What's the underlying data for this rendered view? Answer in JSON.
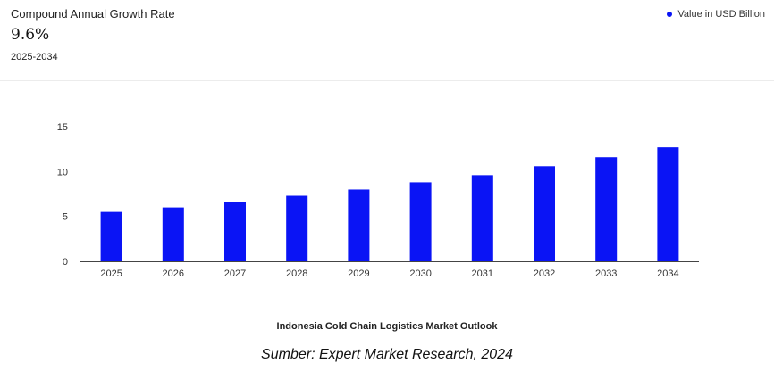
{
  "header": {
    "cagr_label": "Compound Annual Growth Rate",
    "cagr_value": "9.6%",
    "cagr_period": "2025-2034"
  },
  "legend": {
    "label": "Value in USD Billion",
    "color": "#0a14f5"
  },
  "chart_data": {
    "type": "bar",
    "title": "Indonesia Cold Chain Logistics Market Outlook",
    "categories": [
      "2025",
      "2026",
      "2027",
      "2028",
      "2029",
      "2030",
      "2031",
      "2032",
      "2033",
      "2034"
    ],
    "series": [
      {
        "name": "Value in USD Billion",
        "values": [
          5.5,
          6.0,
          6.6,
          7.3,
          8.0,
          8.8,
          9.6,
          10.6,
          11.6,
          12.7
        ]
      }
    ],
    "ylim": [
      0,
      15
    ],
    "yticks": [
      0,
      5,
      10,
      15
    ],
    "grid": false,
    "legend_position": "top-right",
    "bar_color": "#0a14f5"
  },
  "source": "Sumber: Expert Market Research, 2024"
}
